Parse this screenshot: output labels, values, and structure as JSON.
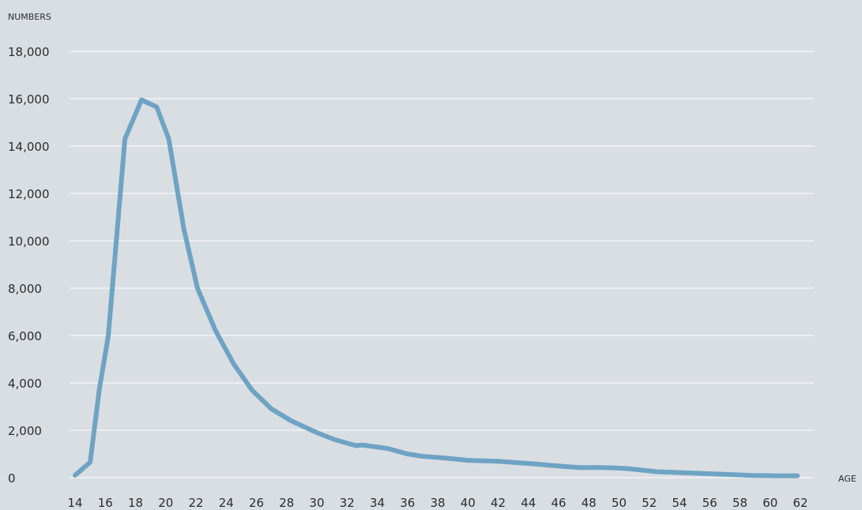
{
  "chart_data": {
    "type": "line",
    "title": "",
    "xlabel": "AGE",
    "ylabel": "NUMBERS",
    "xlim": [
      14,
      62
    ],
    "ylim": [
      0,
      18000
    ],
    "grid": true,
    "line_color": "#6fa3c4",
    "background_color": "#d9dee3",
    "x_ticks": [
      14,
      16,
      18,
      20,
      22,
      24,
      26,
      28,
      30,
      32,
      34,
      36,
      38,
      40,
      42,
      44,
      46,
      48,
      50,
      52,
      54,
      56,
      58,
      60,
      62
    ],
    "x_tick_labels": [
      "14",
      "16",
      "18",
      "20",
      "22",
      "24",
      "26",
      "28",
      "30",
      "32",
      "34",
      "36",
      "38",
      "40",
      "42",
      "44",
      "46",
      "48",
      "50",
      "52",
      "54",
      "56",
      "58",
      "60",
      "62"
    ],
    "y_ticks": [
      0,
      2000,
      4000,
      6000,
      8000,
      10000,
      12000,
      14000,
      16000,
      18000
    ],
    "y_tick_labels": [
      "0",
      "2,000",
      "4,000",
      "6,000",
      "8,000",
      "10,000",
      "12,000",
      "14,000",
      "16,000",
      "18,000"
    ],
    "series": [
      {
        "x": [
          14,
          15,
          15.6,
          16.2,
          17.3,
          18.4,
          19.4,
          20.2,
          21.2,
          22.1,
          23.3,
          24.5,
          25.7,
          27,
          28.3,
          30,
          31.2,
          32.6,
          33,
          34.7,
          36,
          37,
          38.6,
          40,
          42,
          44.4,
          46.2,
          47.5,
          48.6,
          49.8,
          50.6,
          52.5,
          54.5,
          56.6,
          58.8,
          60.5,
          61.8
        ],
        "y": [
          100,
          650,
          3700,
          6000,
          14300,
          15950,
          15650,
          14300,
          10500,
          8000,
          6200,
          4800,
          3700,
          2900,
          2400,
          1900,
          1600,
          1350,
          1380,
          1230,
          1000,
          900,
          820,
          730,
          690,
          580,
          480,
          420,
          430,
          410,
          380,
          250,
          200,
          150,
          90,
          80,
          80
        ]
      }
    ]
  }
}
